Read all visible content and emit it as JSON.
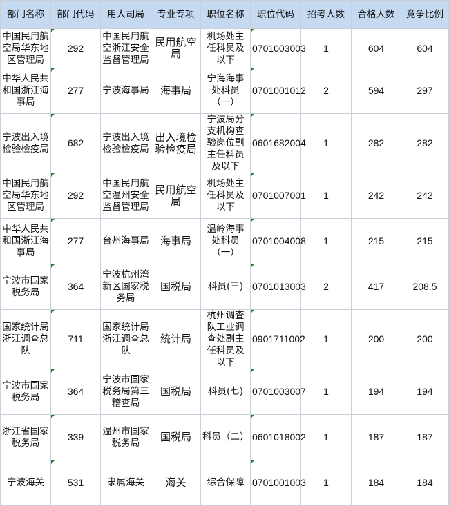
{
  "headers": [
    "部门名称",
    "部门代码",
    "用人司局",
    "专业专项",
    "职位名称",
    "职位代码",
    "招考人数",
    "合格人数",
    "竞争比例"
  ],
  "rows": [
    {
      "dept": "中国民用航空局华东地区管理局",
      "dept_code": "292",
      "bureau": "中国民用航空浙江安全监督管理局",
      "specialty": "民用航空局",
      "position": "机场处主任科员及以下",
      "position_code": "0701003003",
      "hire": "1",
      "qualified": "604",
      "ratio": "604"
    },
    {
      "dept": "中华人民共和国浙江海事局",
      "dept_code": "277",
      "bureau": "宁波海事局",
      "specialty": "海事局",
      "position": "宁海海事处科员（一）",
      "position_code": "0701001012",
      "hire": "2",
      "qualified": "594",
      "ratio": "297"
    },
    {
      "dept": "宁波出入境检验检疫局",
      "dept_code": "682",
      "bureau": "宁波出入境检验检疫局",
      "specialty": "出入境检验检疫局",
      "position": "宁波局分支机构查验岗位副主任科员及以下",
      "position_code": "0601682004",
      "hire": "1",
      "qualified": "282",
      "ratio": "282"
    },
    {
      "dept": "中国民用航空局华东地区管理局",
      "dept_code": "292",
      "bureau": "中国民用航空温州安全监督管理局",
      "specialty": "民用航空局",
      "position": "机场处主任科员及以下",
      "position_code": "0701007001",
      "hire": "1",
      "qualified": "242",
      "ratio": "242"
    },
    {
      "dept": "中华人民共和国浙江海事局",
      "dept_code": "277",
      "bureau": "台州海事局",
      "specialty": "海事局",
      "position": "温岭海事处科员（一）",
      "position_code": "0701004008",
      "hire": "1",
      "qualified": "215",
      "ratio": "215"
    },
    {
      "dept": "宁波市国家税务局",
      "dept_code": "364",
      "bureau": "宁波杭州湾新区国家税务局",
      "specialty": "国税局",
      "position": "科员(三)",
      "position_code": "0701013003",
      "hire": "2",
      "qualified": "417",
      "ratio": "208.5"
    },
    {
      "dept": "国家统计局浙江调查总队",
      "dept_code": "711",
      "bureau": "国家统计局浙江调查总队",
      "specialty": "统计局",
      "position": "杭州调查队工业调查处副主任科员及以下",
      "position_code": "0901711002",
      "hire": "1",
      "qualified": "200",
      "ratio": "200"
    },
    {
      "dept": "宁波市国家税务局",
      "dept_code": "364",
      "bureau": "宁波市国家税务局第三稽查局",
      "specialty": "国税局",
      "position": "科员(七)",
      "position_code": "0701003007",
      "hire": "1",
      "qualified": "194",
      "ratio": "194"
    },
    {
      "dept": "浙江省国家税务局",
      "dept_code": "339",
      "bureau": "温州市国家税务局",
      "specialty": "国税局",
      "position": "科员（二）",
      "position_code": "0601018002",
      "hire": "1",
      "qualified": "187",
      "ratio": "187"
    },
    {
      "dept": "宁波海关",
      "dept_code": "531",
      "bureau": "隶属海关",
      "specialty": "海关",
      "position": "综合保障",
      "position_code": "0701001003",
      "hire": "1",
      "qualified": "184",
      "ratio": "184"
    }
  ]
}
